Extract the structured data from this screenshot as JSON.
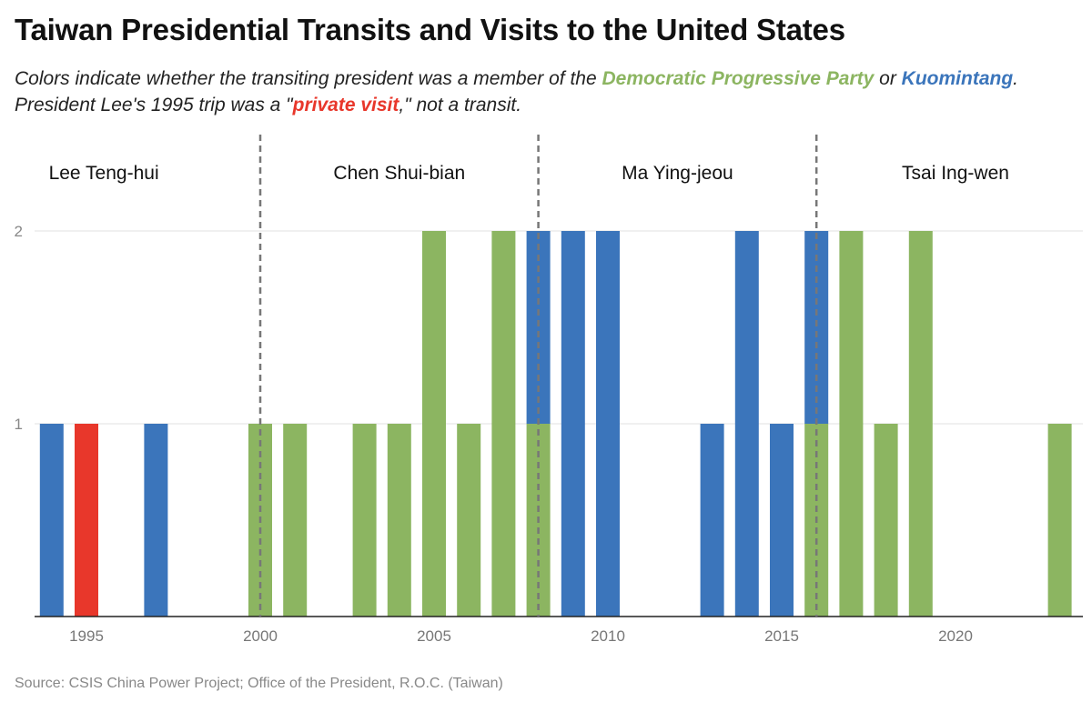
{
  "title": "Taiwan Presidential Transits and Visits to the United States",
  "subtitle": {
    "part1": "Colors indicate whether the transiting president was a member of the ",
    "dpp": "Democratic Progressive Party",
    "part2": " or ",
    "kmt": "Kuomintang",
    "part3": ". President Lee's 1995 trip was a \"",
    "private_visit": "private visit",
    "part4": ",\" not a transit."
  },
  "source": "Source: CSIS China Power Project; Office of the President, R.O.C. (Taiwan)",
  "colors": {
    "dpp": "#8cb561",
    "kmt": "#3b75bb",
    "private": "#e8372b",
    "grid": "#e2e2e2",
    "divider": "#777777"
  },
  "chart_data": {
    "type": "bar",
    "stacked": true,
    "xlim": [
      1993.7,
      2023.9
    ],
    "ylim": [
      0,
      2
    ],
    "x_ticks": [
      1995,
      2000,
      2005,
      2010,
      2015,
      2020
    ],
    "y_ticks": [
      1,
      2
    ],
    "grid": "horizontal",
    "bars": [
      {
        "year": 1994,
        "segments": [
          {
            "party": "kmt",
            "value": 1
          }
        ]
      },
      {
        "year": 1995,
        "segments": [
          {
            "party": "private",
            "value": 1
          }
        ]
      },
      {
        "year": 1997,
        "segments": [
          {
            "party": "kmt",
            "value": 1
          }
        ]
      },
      {
        "year": 2000,
        "segments": [
          {
            "party": "dpp",
            "value": 1
          }
        ]
      },
      {
        "year": 2001,
        "segments": [
          {
            "party": "dpp",
            "value": 1
          }
        ]
      },
      {
        "year": 2003,
        "segments": [
          {
            "party": "dpp",
            "value": 1
          }
        ]
      },
      {
        "year": 2004,
        "segments": [
          {
            "party": "dpp",
            "value": 1
          }
        ]
      },
      {
        "year": 2005,
        "segments": [
          {
            "party": "dpp",
            "value": 2
          }
        ]
      },
      {
        "year": 2006,
        "segments": [
          {
            "party": "dpp",
            "value": 1
          }
        ]
      },
      {
        "year": 2007,
        "segments": [
          {
            "party": "dpp",
            "value": 2
          }
        ]
      },
      {
        "year": 2008,
        "segments": [
          {
            "party": "dpp",
            "value": 1
          },
          {
            "party": "kmt",
            "value": 1
          }
        ]
      },
      {
        "year": 2009,
        "segments": [
          {
            "party": "kmt",
            "value": 2
          }
        ]
      },
      {
        "year": 2010,
        "segments": [
          {
            "party": "kmt",
            "value": 2
          }
        ]
      },
      {
        "year": 2013,
        "segments": [
          {
            "party": "kmt",
            "value": 1
          }
        ]
      },
      {
        "year": 2014,
        "segments": [
          {
            "party": "kmt",
            "value": 2
          }
        ]
      },
      {
        "year": 2015,
        "segments": [
          {
            "party": "kmt",
            "value": 1
          }
        ]
      },
      {
        "year": 2016,
        "segments": [
          {
            "party": "dpp",
            "value": 1
          },
          {
            "party": "kmt",
            "value": 1
          }
        ]
      },
      {
        "year": 2017,
        "segments": [
          {
            "party": "dpp",
            "value": 2
          }
        ]
      },
      {
        "year": 2018,
        "segments": [
          {
            "party": "dpp",
            "value": 1
          }
        ]
      },
      {
        "year": 2019,
        "segments": [
          {
            "party": "dpp",
            "value": 2
          }
        ]
      },
      {
        "year": 2023,
        "segments": [
          {
            "party": "dpp",
            "value": 1
          }
        ]
      }
    ],
    "presidents": [
      {
        "name": "Lee Teng-hui",
        "label_year": 1995.5
      },
      {
        "name": "Chen Shui-bian",
        "label_year": 2004
      },
      {
        "name": "Ma Ying-jeou",
        "label_year": 2012
      },
      {
        "name": "Tsai Ing-wen",
        "label_year": 2020
      }
    ],
    "dividers": [
      2000,
      2008,
      2016
    ]
  }
}
